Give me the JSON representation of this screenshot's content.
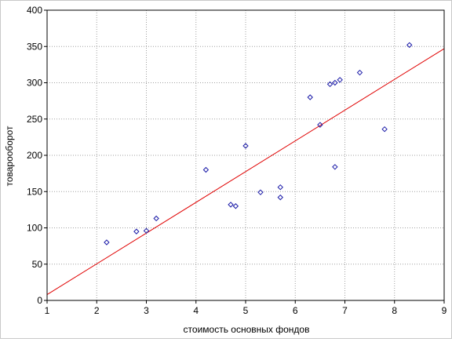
{
  "chart_data": {
    "type": "scatter",
    "title": "",
    "xlabel": "стоимость основных фондов",
    "ylabel": "товарооборот",
    "xlim": [
      1,
      9
    ],
    "ylim": [
      0,
      400
    ],
    "xticks": [
      "1",
      "2",
      "3",
      "4",
      "5",
      "6",
      "7",
      "8",
      "9"
    ],
    "yticks": [
      "0",
      "50",
      "100",
      "150",
      "200",
      "250",
      "300",
      "350",
      "400"
    ],
    "grid": true,
    "points": [
      {
        "x": 2.2,
        "y": 80
      },
      {
        "x": 2.8,
        "y": 95
      },
      {
        "x": 3.0,
        "y": 96
      },
      {
        "x": 3.2,
        "y": 113
      },
      {
        "x": 4.2,
        "y": 180
      },
      {
        "x": 4.7,
        "y": 132
      },
      {
        "x": 4.8,
        "y": 130
      },
      {
        "x": 5.0,
        "y": 213
      },
      {
        "x": 5.3,
        "y": 149
      },
      {
        "x": 5.7,
        "y": 156
      },
      {
        "x": 5.7,
        "y": 142
      },
      {
        "x": 6.3,
        "y": 280
      },
      {
        "x": 6.5,
        "y": 242
      },
      {
        "x": 6.7,
        "y": 298
      },
      {
        "x": 6.8,
        "y": 300
      },
      {
        "x": 6.9,
        "y": 304
      },
      {
        "x": 6.8,
        "y": 184
      },
      {
        "x": 7.3,
        "y": 314
      },
      {
        "x": 7.8,
        "y": 236
      },
      {
        "x": 8.3,
        "y": 352
      }
    ],
    "fit_line": {
      "x": [
        1,
        9
      ],
      "y": [
        8,
        347
      ]
    },
    "colors": {
      "points": "#1a1aa8",
      "fit_line": "#e00000",
      "grid": "#a0a0a0",
      "axes": "#000000"
    }
  }
}
